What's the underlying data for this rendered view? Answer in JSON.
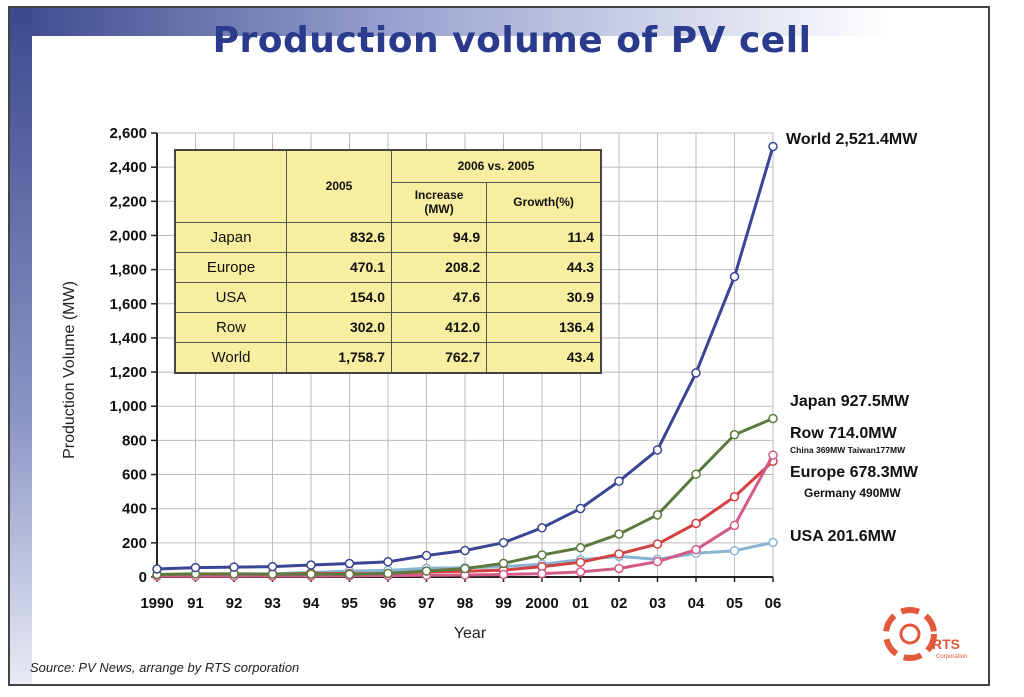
{
  "title": "Production volume of PV cell",
  "source": "Source: PV News, arrange by RTS corporation",
  "logo": {
    "text": "RTS",
    "subtext": "Corporation"
  },
  "colors": {
    "world": "#3a4595",
    "japan": "#5c7a3e",
    "row": "#d35b8a",
    "europe": "#d34040",
    "usa": "#8ab4d4",
    "title": "#2a3a8c"
  },
  "table": {
    "headers": {
      "year": "2005",
      "group": "2006 vs. 2005",
      "increase_line1": "Increase",
      "increase_line2": "(MW)",
      "growth": "Growth(%)"
    },
    "rows": [
      {
        "region": "Japan",
        "v2005": "832.6",
        "increase": "94.9",
        "growth": "11.4"
      },
      {
        "region": "Europe",
        "v2005": "470.1",
        "increase": "208.2",
        "growth": "44.3"
      },
      {
        "region": "USA",
        "v2005": "154.0",
        "increase": "47.6",
        "growth": "30.9"
      },
      {
        "region": "Row",
        "v2005": "302.0",
        "increase": "412.0",
        "growth": "136.4"
      },
      {
        "region": "World",
        "v2005": "1,758.7",
        "increase": "762.7",
        "growth": "43.4"
      }
    ]
  },
  "chart_data": {
    "type": "line",
    "title": "Production volume of PV cell",
    "xlabel": "Year",
    "ylabel": "Production Volume (MW)",
    "ylim": [
      0,
      2600
    ],
    "yticks": [
      0,
      200,
      400,
      600,
      800,
      1000,
      1200,
      1400,
      1600,
      1800,
      2000,
      2200,
      2400,
      2600
    ],
    "ytick_labels": [
      "0",
      "200",
      "400",
      "600",
      "800",
      "1,000",
      "1,200",
      "1,400",
      "1,600",
      "1,800",
      "2,000",
      "2,200",
      "2,400",
      "2,600"
    ],
    "categories": [
      "1990",
      "91",
      "92",
      "93",
      "94",
      "95",
      "96",
      "97",
      "98",
      "99",
      "2000",
      "01",
      "02",
      "03",
      "04",
      "05",
      "06"
    ],
    "grid": true,
    "series": [
      {
        "name": "World",
        "label": "World 2,521.4MW",
        "values": [
          47,
          55,
          58,
          61,
          70,
          79,
          89,
          126,
          155,
          201,
          288,
          401,
          561,
          744,
          1195,
          1759,
          2521
        ]
      },
      {
        "name": "Japan",
        "label": "Japan 927.5MW",
        "values": [
          15,
          18,
          18,
          17,
          17,
          16,
          21,
          35,
          49,
          80,
          129,
          171,
          251,
          364,
          602,
          833,
          928
        ]
      },
      {
        "name": "Row",
        "label": "Row 714.0MW",
        "values": [
          5,
          5,
          5,
          6,
          6,
          7,
          8,
          10,
          12,
          15,
          20,
          30,
          50,
          90,
          160,
          302,
          714
        ]
      },
      {
        "name": "Europe",
        "label": "Europe 678.3MW",
        "values": [
          10,
          11,
          14,
          16,
          21,
          20,
          19,
          30,
          34,
          40,
          61,
          86,
          135,
          193,
          314,
          470,
          678
        ]
      },
      {
        "name": "USA",
        "label": "USA 201.6MW",
        "values": [
          15,
          17,
          18,
          19,
          26,
          35,
          39,
          51,
          54,
          61,
          75,
          101,
          121,
          103,
          139,
          154,
          202
        ]
      }
    ],
    "annotations": [
      "China 369MW Taiwan177MW",
      "Germany 490MW"
    ]
  }
}
